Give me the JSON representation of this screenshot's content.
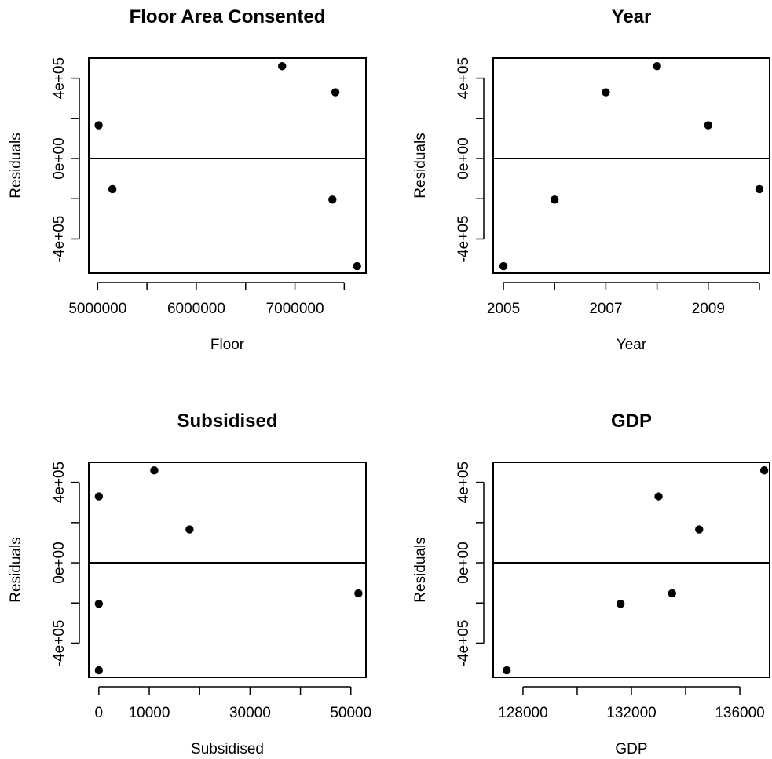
{
  "chart_data": [
    {
      "type": "scatter",
      "title": "Floor Area Consented",
      "xlabel": "Floor",
      "ylabel": "Residuals",
      "xlim": [
        4910000,
        7720000
      ],
      "ylim": [
        -570000,
        500000
      ],
      "xticks": [
        5000000,
        5500000,
        6000000,
        6500000,
        7000000,
        7500000
      ],
      "xtick_labels": [
        "5000000",
        "",
        "6000000",
        "",
        "7000000",
        ""
      ],
      "yticks": [
        -400000,
        -200000,
        0,
        200000,
        400000
      ],
      "ytick_labels": [
        "-4e+05",
        "",
        "0e+00",
        "",
        "4e+05"
      ],
      "reference_line_y": 0,
      "x": [
        5010000,
        5150000,
        6870000,
        7380000,
        7410000,
        7630000
      ],
      "y": [
        166000,
        -152000,
        460000,
        -204000,
        330000,
        -535000
      ]
    },
    {
      "type": "scatter",
      "title": "Year",
      "xlabel": "Year",
      "ylabel": "Residuals",
      "xlim": [
        2004.8,
        2010.2
      ],
      "ylim": [
        -570000,
        500000
      ],
      "xticks": [
        2005,
        2006,
        2007,
        2008,
        2009,
        2010
      ],
      "xtick_labels": [
        "2005",
        "",
        "2007",
        "",
        "2009",
        ""
      ],
      "yticks": [
        -400000,
        -200000,
        0,
        200000,
        400000
      ],
      "ytick_labels": [
        "-4e+05",
        "",
        "0e+00",
        "",
        "4e+05"
      ],
      "reference_line_y": 0,
      "x": [
        2005,
        2006,
        2007,
        2008,
        2009,
        2010
      ],
      "y": [
        -535000,
        -204000,
        330000,
        460000,
        166000,
        -152000
      ]
    },
    {
      "type": "scatter",
      "title": "Subsidised",
      "xlabel": "Subsidised",
      "ylabel": "Residuals",
      "xlim": [
        -2000,
        53000
      ],
      "ylim": [
        -570000,
        500000
      ],
      "xticks": [
        0,
        10000,
        20000,
        30000,
        40000,
        50000
      ],
      "xtick_labels": [
        "0",
        "10000",
        "",
        "30000",
        "",
        "50000"
      ],
      "yticks": [
        -400000,
        -200000,
        0,
        200000,
        400000
      ],
      "ytick_labels": [
        "-4e+05",
        "",
        "0e+00",
        "",
        "4e+05"
      ],
      "reference_line_y": 0,
      "x": [
        0,
        0,
        0,
        11000,
        18000,
        51500
      ],
      "y": [
        330000,
        -204000,
        -535000,
        460000,
        166000,
        -152000
      ]
    },
    {
      "type": "scatter",
      "title": "GDP",
      "xlabel": "GDP",
      "ylabel": "Residuals",
      "xlim": [
        126900,
        137100
      ],
      "ylim": [
        -570000,
        500000
      ],
      "xticks": [
        128000,
        130000,
        132000,
        134000,
        136000
      ],
      "xtick_labels": [
        "128000",
        "",
        "132000",
        "",
        "136000"
      ],
      "yticks": [
        -400000,
        -200000,
        0,
        200000,
        400000
      ],
      "ytick_labels": [
        "-4e+05",
        "",
        "0e+00",
        "",
        "4e+05"
      ],
      "reference_line_y": 0,
      "x": [
        127400,
        131600,
        133000,
        133500,
        134500,
        136900
      ],
      "y": [
        -535000,
        -204000,
        330000,
        -152000,
        166000,
        460000
      ]
    }
  ]
}
